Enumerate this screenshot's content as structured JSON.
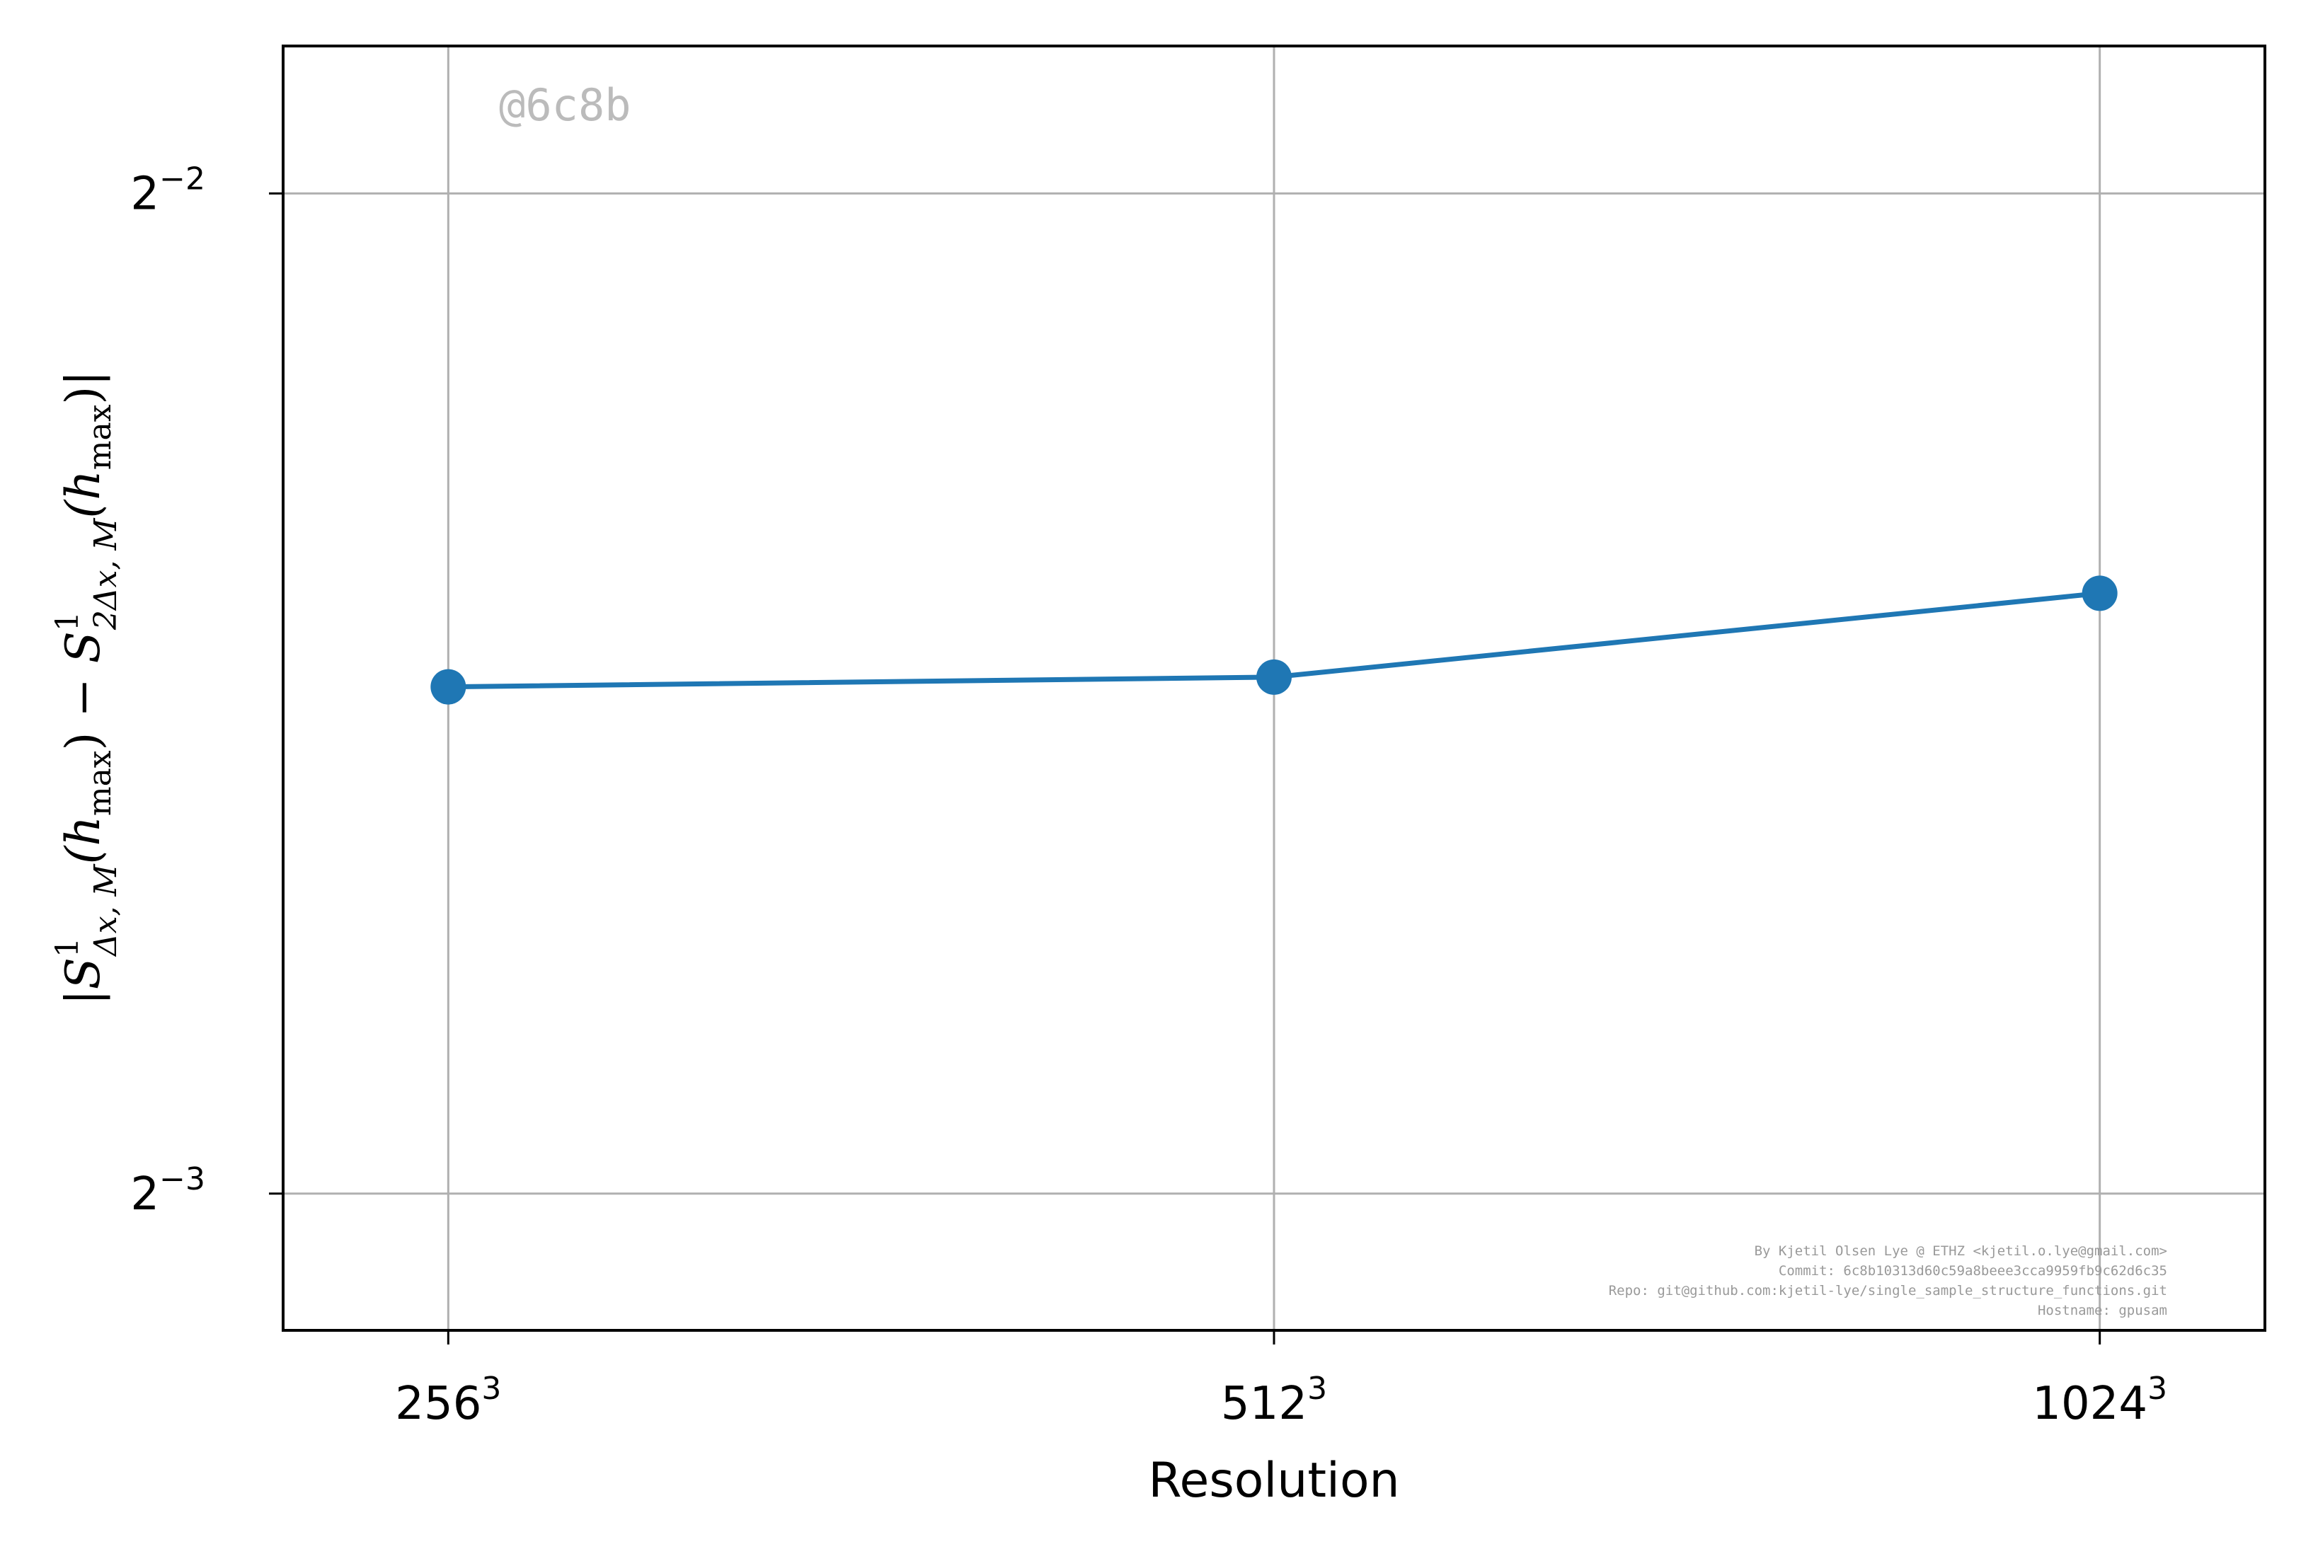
{
  "chart_data": {
    "type": "line",
    "title": "",
    "xlabel": "Resolution",
    "ylabel": {
      "abs_open": "|",
      "s1": "S",
      "s1_sup": "1",
      "s1_sub": "Δx, M",
      "h1_open": "(h",
      "h1_sub": "max",
      "h1_close": ")",
      "minus": " − ",
      "s2": "S",
      "s2_sup": "1",
      "s2_sub": "2Δx, M",
      "h2_open": "(h",
      "h2_sub": "max",
      "h2_close": ")",
      "abs_close": "|"
    },
    "x_scale": "log2",
    "y_scale": "log2",
    "categories": [
      {
        "base": "256",
        "exp": "3"
      },
      {
        "base": "512",
        "exp": "3"
      },
      {
        "base": "1024",
        "exp": "3"
      }
    ],
    "x": [
      256,
      512,
      1024
    ],
    "series": [
      {
        "color": "#1f77b4",
        "marker": "circle",
        "values": [
          0.1776,
          0.1788,
          0.1895
        ]
      }
    ],
    "yticks": [
      {
        "value": 0.25,
        "base": "2",
        "exp": "−2"
      },
      {
        "value": 0.125,
        "base": "2",
        "exp": "−3"
      }
    ],
    "ylim": [
      0.1137,
      0.2769
    ],
    "grid": true,
    "colors": {
      "series": "#1f77b4",
      "grid": "#b0b0b0",
      "axes": "#000000",
      "watermark": "#bbbbbb",
      "credits": "#999999"
    }
  },
  "watermark": "@6c8b",
  "credits": [
    "By Kjetil Olsen Lye @ ETHZ <kjetil.o.lye@gmail.com>",
    "Commit: 6c8b10313d60c59a8beee3cca9959fb9c62d6c35",
    "Repo: git@github.com:kjetil-lye/single_sample_structure_functions.git",
    "Hostname: gpusam"
  ]
}
